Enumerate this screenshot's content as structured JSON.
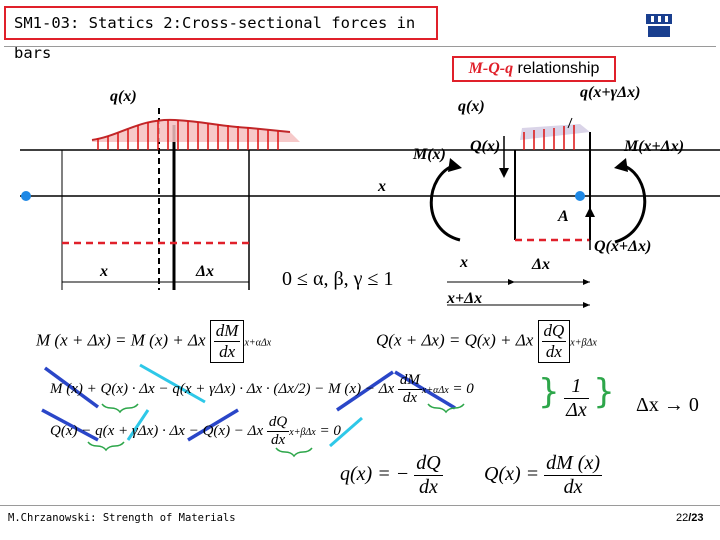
{
  "title": "SM1-03: Statics 2:Cross-sectional forces in bars",
  "relationship": {
    "prefix": "M-Q-q",
    "suffix": " relationship"
  },
  "labels": {
    "q_left": "q(x)",
    "q_x": "q(x)",
    "q_gamma": "q(x+γΔx)",
    "Mx": "M(x)",
    "Qx": "Q(x)",
    "M_dx": "M(x+Δx)",
    "x_axis": "x",
    "A": "A",
    "Q_dx": "Q(x+Δx)",
    "x_bottom": "x",
    "dx_bottom": "Δx",
    "x_right": "x",
    "dx_right": "Δx",
    "x_plus_dx": "x+Δx",
    "range": "0 ≤ α, β, γ ≤ 1"
  },
  "equations": {
    "eq1_left": "M (x + Δx) = M (x) + Δx",
    "eq1_num": "dM",
    "eq1_den": "dx",
    "eq1_sub": "x+αΔx",
    "eq2_left": "Q(x + Δx) = Q(x) + Δx",
    "eq2_num": "dQ",
    "eq2_den": "dx",
    "eq2_sub": "x+βΔx",
    "eq3": "M (x) + Q(x) · Δx − q(x + γΔx) · Δx · (Δx/2) − M (x) − Δx",
    "eq3_num": "dM",
    "eq3_den": "dx",
    "eq3_sub": "x+αΔx",
    "eq3_rhs": "= 0",
    "eq4": "Q(x) − q(x + γΔx) · Δx − Q(x) − Δx",
    "eq4_num": "dQ",
    "eq4_den": "dx",
    "eq4_sub": "x+βΔx",
    "eq4_rhs": "= 0",
    "one": "1",
    "dx_frac": "Δx",
    "limit": "Δx → 0",
    "res1_left": "q(x) = −",
    "res1_num": "dQ",
    "res1_den": "dx",
    "res2_left": "Q(x) =",
    "res2_num": "dM (x)",
    "res2_den": "dx"
  },
  "footer": "M.Chrzanowski: Strength of Materials",
  "page": {
    "current": "22",
    "total": "/23"
  },
  "colors": {
    "accent": "#e0202a",
    "beam_dot": "#1e88e5",
    "slash_blue": "#2a46c8",
    "slash_cyan": "#2ec8e8",
    "brace": "#2da64a",
    "load_fill": "#f4c0c0"
  }
}
